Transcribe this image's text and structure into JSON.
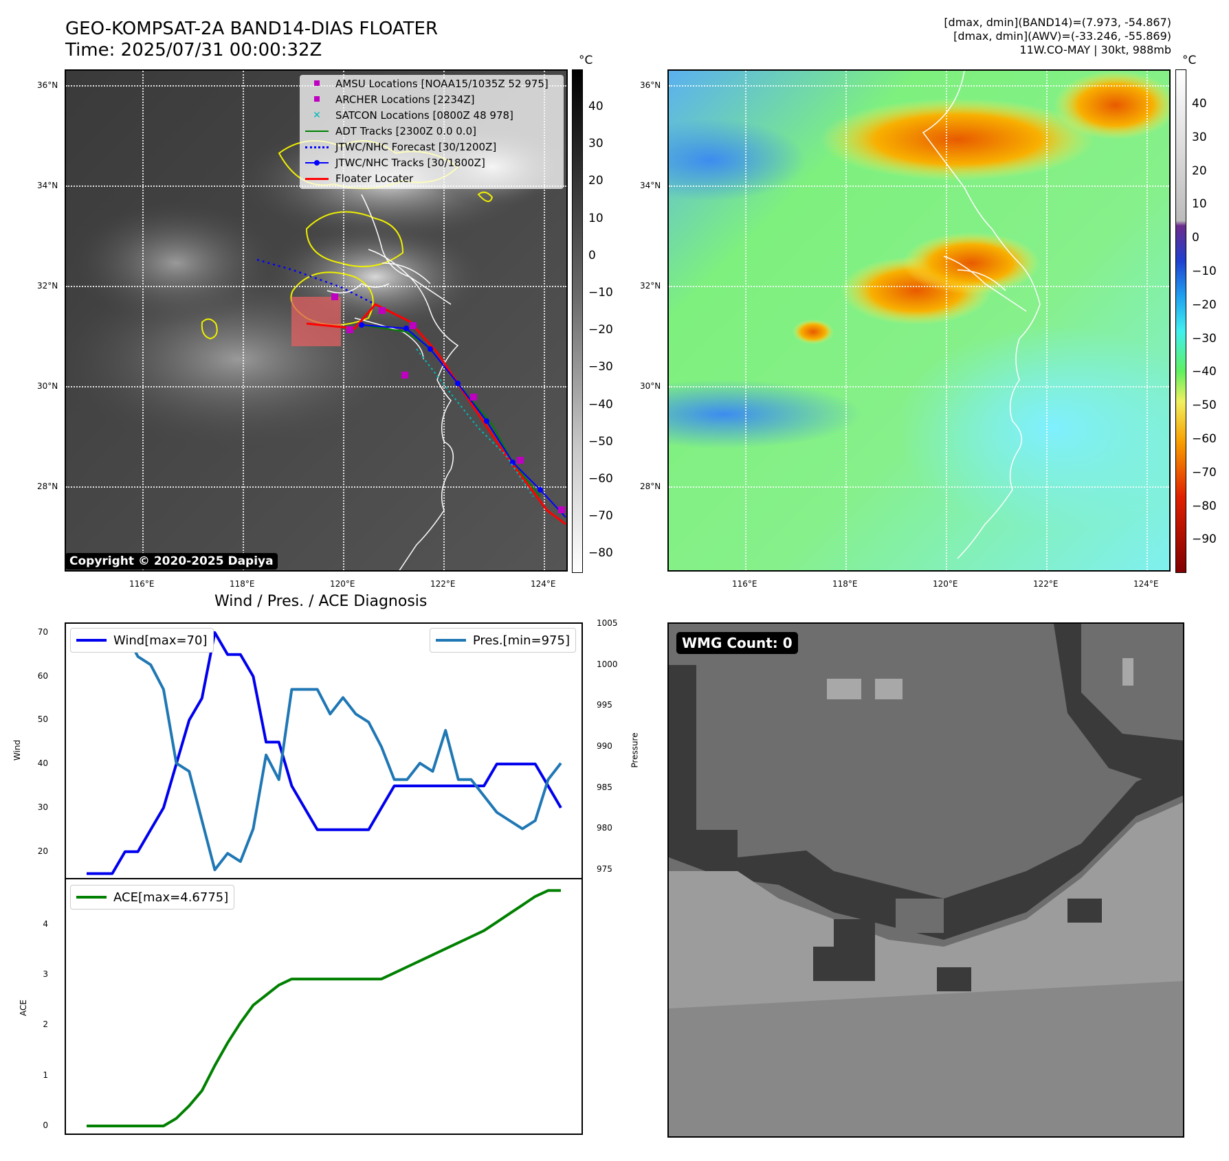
{
  "header": {
    "title_line1": "GEO-KOMPSAT-2A BAND14-DIAS FLOATER",
    "title_line2": "Time: 2025/07/31 00:00:32Z",
    "info_line1": "[dmax, dmin](BAND14)=(7.973, -54.867)",
    "info_line2": "[dmax, dmin](AWV)=(-33.246, -55.869)",
    "info_line3": "11W.CO-MAY | 30kt, 988mb"
  },
  "map": {
    "lat_labels": [
      "36°N",
      "34°N",
      "32°N",
      "30°N",
      "28°N"
    ],
    "lon_labels": [
      "116°E",
      "118°E",
      "120°E",
      "122°E",
      "124°E"
    ],
    "copyright": "Copyright © 2020-2025 Dapiya",
    "legend": [
      {
        "label": "AMSU Locations [NOAA15/1035Z 52 975]",
        "symbol": "square",
        "color": "#c000c0"
      },
      {
        "label": "ARCHER Locations [2234Z]",
        "symbol": "square",
        "color": "#c000c0"
      },
      {
        "label": "SATCON Locations [0800Z 48 978]",
        "symbol": "x",
        "color": "#00b8b8"
      },
      {
        "label": "ADT Tracks [2300Z 0.0 0.0]",
        "symbol": "line",
        "color": "#008000"
      },
      {
        "label": "JTWC/NHC Forecast [30/1200Z]",
        "symbol": "dotted",
        "color": "#0000ff"
      },
      {
        "label": "JTWC/NHC Tracks [30/1800Z]",
        "symbol": "linedot",
        "color": "#0000ff"
      },
      {
        "label": "Floater Locater",
        "symbol": "line",
        "color": "#ff0000"
      }
    ]
  },
  "colorbar_ir": {
    "unit": "°C",
    "ticks": [
      "40",
      "30",
      "20",
      "10",
      "0",
      "−10",
      "−20",
      "−30",
      "−40",
      "−50",
      "−60",
      "−70",
      "−80"
    ]
  },
  "colorbar_wv": {
    "unit": "°C",
    "ticks": [
      "40",
      "30",
      "20",
      "10",
      "0",
      "−10",
      "−20",
      "−30",
      "−40",
      "−50",
      "−60",
      "−70",
      "−80",
      "−90"
    ]
  },
  "diagnosis": {
    "title": "Wind / Pres. / ACE Diagnosis",
    "wind_axis_label": "Wind",
    "pressure_axis_label": "Pressure",
    "ace_axis_label": "ACE",
    "wind_ticks": [
      "70",
      "60",
      "50",
      "40",
      "30",
      "20"
    ],
    "pressure_ticks": [
      "1005",
      "1000",
      "995",
      "990",
      "985",
      "980",
      "975"
    ],
    "ace_ticks": [
      "4",
      "3",
      "2",
      "1",
      "0"
    ],
    "wind_legend": "Wind[max=70]",
    "pressure_legend": "Pres.[min=975]",
    "ace_legend": "ACE[max=4.6775]"
  },
  "wmg": {
    "label": "WMG Count: 0"
  },
  "chart_data": [
    {
      "type": "line",
      "title": "Wind / Pres. / ACE Diagnosis",
      "ylabel": "Wind",
      "ylim": [
        14,
        72
      ],
      "series": [
        {
          "name": "Wind[max=70]",
          "color": "#0000ee",
          "values": [
            15,
            15,
            15,
            20,
            20,
            25,
            30,
            40,
            50,
            55,
            70,
            65,
            65,
            60,
            45,
            45,
            35,
            30,
            25,
            25,
            25,
            25,
            25,
            30,
            35,
            35,
            35,
            35,
            35,
            35,
            35,
            35,
            40,
            40,
            40,
            40,
            35,
            30
          ]
        }
      ]
    },
    {
      "type": "line",
      "ylabel": "Pressure",
      "ylim": [
        974,
        1005
      ],
      "series": [
        {
          "name": "Pres.[min=975]",
          "color": "#1f77b4",
          "values": [
            1004,
            1004,
            1004,
            1004,
            1001,
            1000,
            997,
            988,
            987,
            981,
            975,
            977,
            976,
            980,
            989,
            986,
            997,
            997,
            997,
            994,
            996,
            994,
            993,
            990,
            986,
            986,
            988,
            987,
            992,
            986,
            986,
            984,
            982,
            981,
            980,
            981,
            986,
            988
          ]
        }
      ]
    },
    {
      "type": "line",
      "ylabel": "ACE",
      "ylim": [
        -0.15,
        4.9
      ],
      "series": [
        {
          "name": "ACE[max=4.6775]",
          "color": "#008000",
          "values": [
            0,
            0,
            0,
            0,
            0,
            0,
            0,
            0.15,
            0.4,
            0.7,
            1.2,
            1.65,
            2.05,
            2.4,
            2.6,
            2.8,
            2.92,
            2.92,
            2.92,
            2.92,
            2.92,
            2.92,
            2.92,
            2.92,
            3.04,
            3.16,
            3.28,
            3.4,
            3.52,
            3.64,
            3.76,
            3.88,
            4.05,
            4.22,
            4.39,
            4.56,
            4.6775,
            4.6775
          ]
        }
      ]
    }
  ]
}
